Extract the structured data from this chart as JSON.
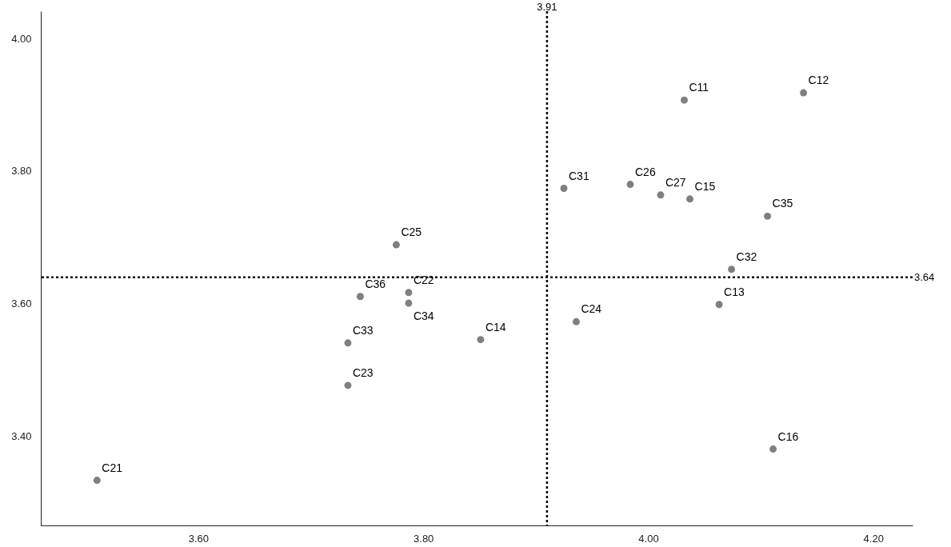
{
  "chart_data": {
    "type": "scatter",
    "xlim": [
      3.46,
      4.235
    ],
    "ylim": [
      3.266,
      4.041
    ],
    "xticks": [
      {
        "value": 3.6,
        "label": "3.60"
      },
      {
        "value": 3.8,
        "label": "3.80"
      },
      {
        "value": 4.0,
        "label": "4.00"
      },
      {
        "value": 4.2,
        "label": "4.20"
      }
    ],
    "yticks": [
      {
        "value": 3.4,
        "label": "3.40"
      },
      {
        "value": 3.6,
        "label": "3.60"
      },
      {
        "value": 3.8,
        "label": "3.80"
      },
      {
        "value": 4.0,
        "label": "4.00"
      }
    ],
    "grid": false,
    "marker": "circle",
    "series": [
      {
        "color": "#7f7f7f",
        "x": [
          3.51,
          3.733,
          3.733,
          3.744,
          3.776,
          3.787,
          3.787,
          3.851,
          3.925,
          3.936,
          3.984,
          4.011,
          4.032,
          4.037,
          4.063,
          4.074,
          4.106,
          4.111,
          4.138
        ],
        "values": [
          3.334,
          3.541,
          3.477,
          3.611,
          3.689,
          3.617,
          3.601,
          3.546,
          3.774,
          3.573,
          3.78,
          3.764,
          3.907,
          3.758,
          3.599,
          3.652,
          3.732,
          3.381,
          3.918
        ]
      }
    ],
    "annotations": [
      {
        "text": "C21",
        "x": 3.51,
        "y": 3.334
      },
      {
        "text": "C33",
        "x": 3.733,
        "y": 3.541
      },
      {
        "text": "C23",
        "x": 3.733,
        "y": 3.477
      },
      {
        "text": "C36",
        "x": 3.744,
        "y": 3.611
      },
      {
        "text": "C25",
        "x": 3.776,
        "y": 3.689
      },
      {
        "text": "C22",
        "x": 3.787,
        "y": 3.617
      },
      {
        "text": "C34",
        "x": 3.787,
        "y": 3.601
      },
      {
        "text": "C14",
        "x": 3.851,
        "y": 3.546
      },
      {
        "text": "C31",
        "x": 3.925,
        "y": 3.774
      },
      {
        "text": "C24",
        "x": 3.936,
        "y": 3.573
      },
      {
        "text": "C26",
        "x": 3.984,
        "y": 3.78
      },
      {
        "text": "C27",
        "x": 4.011,
        "y": 3.764
      },
      {
        "text": "C11",
        "x": 4.032,
        "y": 3.907
      },
      {
        "text": "C15",
        "x": 4.037,
        "y": 3.758
      },
      {
        "text": "C13",
        "x": 4.063,
        "y": 3.599
      },
      {
        "text": "C32",
        "x": 4.074,
        "y": 3.652
      },
      {
        "text": "C35",
        "x": 4.106,
        "y": 3.732
      },
      {
        "text": "C16",
        "x": 4.111,
        "y": 3.381
      },
      {
        "text": "C12",
        "x": 4.138,
        "y": 3.918
      }
    ],
    "ref_lines": [
      {
        "axis": "x",
        "value": 3.91,
        "label": "3.91",
        "line_style": "dotted"
      },
      {
        "axis": "y",
        "value": 3.64,
        "label": "3.64",
        "line_style": "dotted"
      }
    ]
  }
}
